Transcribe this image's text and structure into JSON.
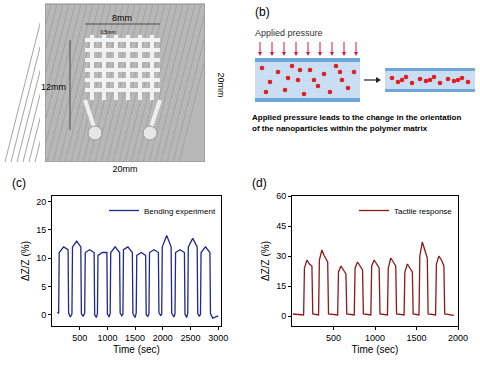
{
  "panel_a": {
    "label": "(a)",
    "dimensions": {
      "top": "8mm",
      "gap": "0.5mm",
      "left": "12mm",
      "bottom": "20mm",
      "right": "20mm"
    }
  },
  "panel_b": {
    "label": "(b)",
    "arrow_text": "Applied pressure",
    "caption": [
      "Applied pressure leads to the change in the orientation",
      "of the nanoparticles within the polymer matrix"
    ]
  },
  "chart_data": [
    {
      "panel": "(c)",
      "type": "line",
      "xlabel": "Time (sec)",
      "ylabel": "ΔZ/Z (%)",
      "x": [
        100,
        120,
        130,
        210,
        290,
        300,
        330,
        360,
        370,
        445,
        520,
        530,
        560,
        590,
        600,
        680,
        760,
        770,
        800,
        820,
        830,
        910,
        990,
        1000,
        1030,
        1050,
        1060,
        1140,
        1220,
        1230,
        1260,
        1280,
        1290,
        1370,
        1450,
        1460,
        1500,
        1520,
        1530,
        1610,
        1690,
        1700,
        1730,
        1750,
        1760,
        1840,
        1920,
        1930,
        1960,
        1980,
        1990,
        2070,
        2150,
        2160,
        2200,
        2220,
        2230,
        2310,
        2390,
        2400,
        2430,
        2450,
        2460,
        2540,
        2620,
        2630,
        2660,
        2680,
        2690,
        2770,
        2850,
        2860,
        2900,
        3000
      ],
      "series": [
        {
          "name": "Bending experiment",
          "color": "#1f2a8c",
          "values": [
            0.5,
            0.2,
            11,
            12,
            11.5,
            0.3,
            -0.4,
            0.1,
            12,
            13,
            12,
            0.2,
            -0.3,
            0.3,
            11,
            11.5,
            11,
            0,
            -0.5,
            0.2,
            10.5,
            11,
            11,
            0.1,
            -0.4,
            0.2,
            11,
            12,
            11,
            0.3,
            -0.2,
            0.1,
            11.5,
            12,
            11,
            0.2,
            -0.5,
            0.3,
            10.5,
            11,
            10.5,
            0,
            -0.3,
            0.2,
            11,
            11.5,
            11,
            0.4,
            -0.2,
            0.1,
            12,
            14,
            12,
            0.3,
            -0.4,
            0.2,
            11,
            11.5,
            11,
            0.1,
            -0.5,
            0.3,
            12,
            13.5,
            12,
            0.2,
            -0.3,
            0.1,
            11,
            12,
            11,
            0.2,
            -0.6,
            -0.2
          ]
        }
      ],
      "xlim": [
        0,
        3050
      ],
      "ylim": [
        -2,
        21
      ],
      "xticks": [
        500,
        1000,
        1500,
        2000,
        2500,
        3000
      ],
      "yticks": [
        0,
        5,
        10,
        15,
        20
      ],
      "legend": "upper right",
      "grid": false
    },
    {
      "panel": "(d)",
      "type": "line",
      "xlabel": "Time (sec)",
      "ylabel": "ΔZ/Z (%)",
      "x": [
        10,
        140,
        150,
        180,
        210,
        240,
        250,
        320,
        330,
        360,
        390,
        430,
        440,
        550,
        560,
        590,
        620,
        650,
        660,
        750,
        760,
        790,
        820,
        850,
        860,
        950,
        960,
        990,
        1020,
        1050,
        1060,
        1150,
        1160,
        1190,
        1220,
        1250,
        1260,
        1350,
        1360,
        1390,
        1420,
        1450,
        1460,
        1530,
        1540,
        1570,
        1600,
        1630,
        1640,
        1730,
        1740,
        1770,
        1800,
        1830,
        1840,
        1950
      ],
      "series": [
        {
          "name": "Tactile response",
          "color": "#8b1a1a",
          "values": [
            1,
            0.5,
            24,
            28,
            26,
            25,
            1,
            0.5,
            28,
            33,
            30,
            27,
            1,
            0.5,
            22,
            25,
            23,
            21,
            1,
            0.5,
            24,
            27,
            25,
            23,
            1,
            0.5,
            25,
            28,
            26,
            24,
            1,
            0.5,
            24,
            29,
            27,
            25,
            1,
            0.5,
            22,
            26,
            24,
            22,
            1,
            0.5,
            30,
            37,
            33,
            29,
            1,
            0.5,
            26,
            30,
            28,
            25,
            1,
            0.3
          ]
        }
      ],
      "xlim": [
        0,
        2000
      ],
      "ylim": [
        -5,
        60
      ],
      "xticks": [
        500,
        1000,
        1500,
        2000
      ],
      "yticks": [
        0,
        15,
        30,
        45,
        60
      ],
      "legend": "upper right",
      "grid": false
    }
  ]
}
